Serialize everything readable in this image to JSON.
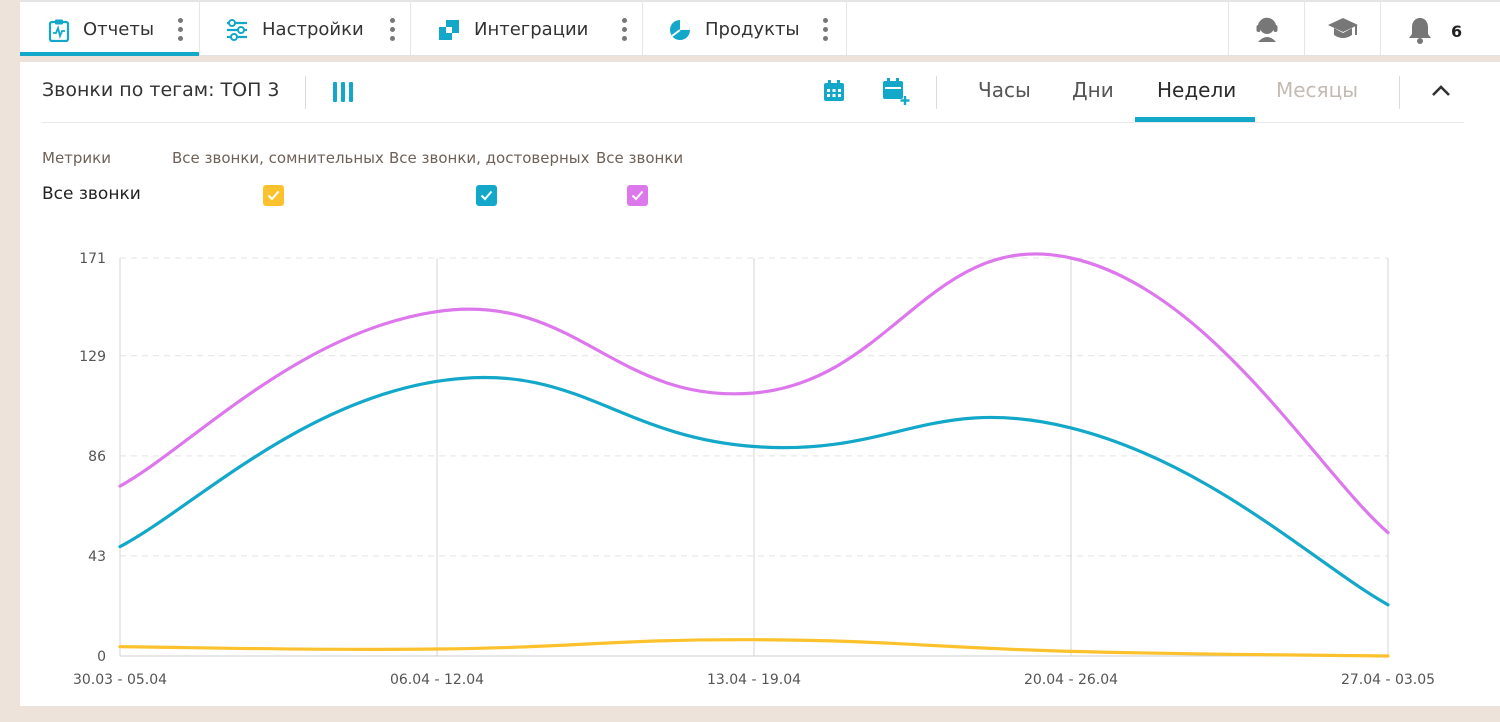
{
  "nav": {
    "tabs": [
      {
        "label": "Отчеты",
        "icon": "clipboard-chart-icon"
      },
      {
        "label": "Настройки",
        "icon": "sliders-icon"
      },
      {
        "label": "Интеграции",
        "icon": "integration-blocks-icon"
      },
      {
        "label": "Продукты",
        "icon": "pie-chart-icon"
      }
    ],
    "notifications_count": "6",
    "right_icons": [
      "support-agent-icon",
      "graduation-cap-icon",
      "bell-icon"
    ]
  },
  "panel": {
    "title": "Звонки по тегам: ТОП 3",
    "periods": [
      "Часы",
      "Дни",
      "Недели",
      "Месяцы"
    ],
    "active_period": "Недели"
  },
  "metrics": {
    "header_label": "Метрики",
    "columns": [
      "Все звонки, сомнительных",
      "Все звонки, достоверных",
      "Все звонки"
    ],
    "row_label": "Все звонки",
    "checkbox_colors": [
      "#fbc22d",
      "#13a8c9",
      "#dd78ec"
    ]
  },
  "colors": {
    "accent": "#13a8c9",
    "background": "#ede3da"
  },
  "chart_data": {
    "type": "line",
    "categories": [
      "30.03 - 05.04",
      "06.04 - 12.04",
      "13.04 - 19.04",
      "20.04 - 26.04",
      "27.04 - 03.05"
    ],
    "y_ticks": [
      "0",
      "43",
      "86",
      "129",
      "171"
    ],
    "ylim": [
      0,
      171
    ],
    "grid": true,
    "series": [
      {
        "name": "Все звонки, сомнительных",
        "color": "#fbc22d",
        "values": [
          4,
          3,
          7,
          2,
          0
        ]
      },
      {
        "name": "Все звонки, достоверных",
        "color": "#13a8c9",
        "values": [
          47,
          118,
          90,
          98,
          22
        ]
      },
      {
        "name": "Все звонки",
        "color": "#dd78ec",
        "values": [
          73,
          148,
          113,
          171,
          53
        ]
      }
    ]
  }
}
